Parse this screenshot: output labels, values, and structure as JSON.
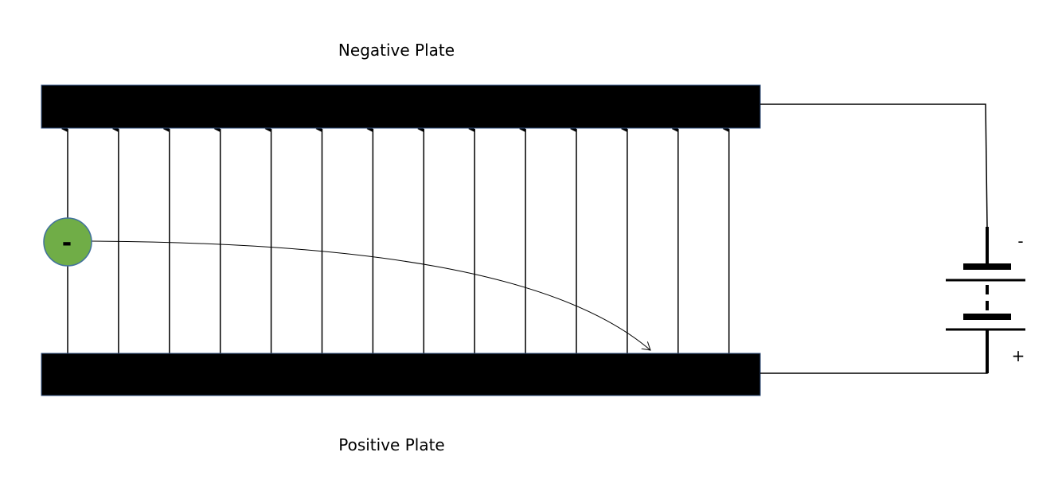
{
  "labels": {
    "top_plate": "Negative Plate",
    "bottom_plate": "Positive Plate"
  },
  "battery": {
    "negative_terminal": "-",
    "positive_terminal": "+"
  },
  "particle": {
    "charge": "-"
  }
}
